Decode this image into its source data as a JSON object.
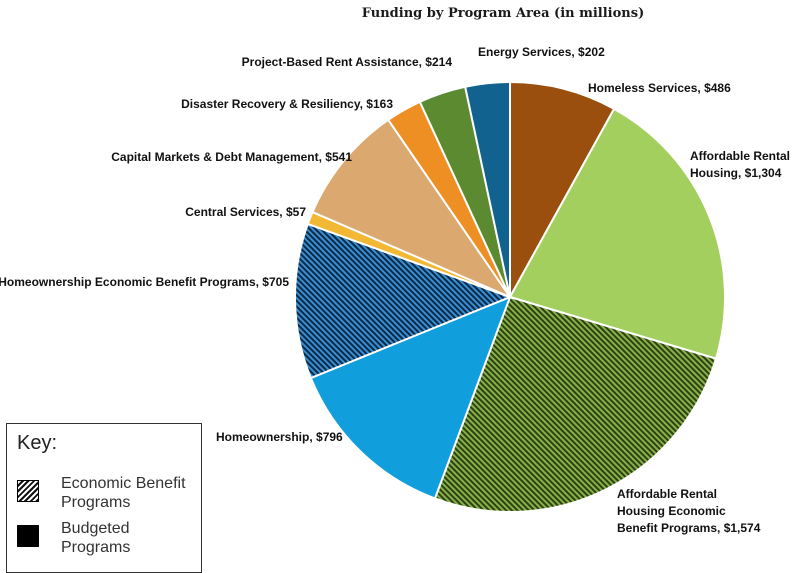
{
  "chart_data": {
    "type": "pie",
    "title": "Funding by Program Area (in millions)",
    "start_angle_deg": 0,
    "slices": [
      {
        "label": "Homeless Services, $486",
        "value": 486,
        "color": "#9a4f0e",
        "pattern": false
      },
      {
        "label": "Affordable Rental Housing, $1,304",
        "value": 1304,
        "color": "#a3cf5e",
        "pattern": false
      },
      {
        "label": "Affordable Rental Housing Economic Benefit Programs, $1,574",
        "value": 1574,
        "color": "#5a7d2a",
        "pattern": true
      },
      {
        "label": "Homeownership, $796",
        "value": 796,
        "color": "#109fdc",
        "pattern": false
      },
      {
        "label": "Homeownership Economic Benefit Programs, $705",
        "value": 705,
        "color": "#1c5c86",
        "pattern": true
      },
      {
        "label": "Central Services, $57",
        "value": 57,
        "color": "#f2b733",
        "pattern": false
      },
      {
        "label": "Capital Markets & Debt Management, $541",
        "value": 541,
        "color": "#dba870",
        "pattern": false
      },
      {
        "label": "Disaster Recovery & Resiliency, $163",
        "value": 163,
        "color": "#ee8f24",
        "pattern": false
      },
      {
        "label": "Project-Based Rent Assistance, $214",
        "value": 214,
        "color": "#5c8a30",
        "pattern": false
      },
      {
        "label": "Energy Services, $202",
        "value": 202,
        "color": "#12628f",
        "pattern": false
      }
    ],
    "legend": {
      "title": "Key:",
      "items": [
        {
          "label": "Economic Benefit Programs",
          "swatch": "hatched"
        },
        {
          "label": "Budgeted Programs",
          "swatch": "solid"
        }
      ],
      "placement": "bottom-left"
    }
  }
}
